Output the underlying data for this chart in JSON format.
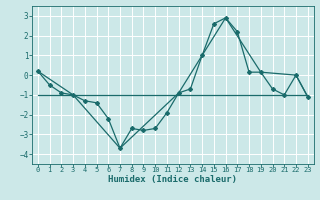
{
  "title": "",
  "xlabel": "Humidex (Indice chaleur)",
  "ylabel": "",
  "background_color": "#cce8e8",
  "line_color": "#1a6b6b",
  "grid_color": "#ffffff",
  "xlim": [
    -0.5,
    23.5
  ],
  "ylim": [
    -4.5,
    3.5
  ],
  "yticks": [
    -4,
    -3,
    -2,
    -1,
    0,
    1,
    2,
    3
  ],
  "xticks": [
    0,
    1,
    2,
    3,
    4,
    5,
    6,
    7,
    8,
    9,
    10,
    11,
    12,
    13,
    14,
    15,
    16,
    17,
    18,
    19,
    20,
    21,
    22,
    23
  ],
  "series1_x": [
    0,
    1,
    2,
    3,
    4,
    5,
    6,
    7,
    8,
    9,
    10,
    11,
    12,
    13,
    14,
    15,
    16,
    17,
    18,
    19,
    20,
    21,
    22,
    23
  ],
  "series1_y": [
    0.2,
    -0.5,
    -0.9,
    -1.0,
    -1.3,
    -1.4,
    -2.2,
    -3.7,
    -2.7,
    -2.8,
    -2.7,
    -1.9,
    -0.9,
    -0.7,
    1.0,
    2.6,
    2.9,
    2.2,
    0.15,
    0.15,
    -0.7,
    -1.0,
    0.0,
    -1.1
  ],
  "series2_x": [
    0,
    3,
    7,
    12,
    16,
    19,
    22,
    23
  ],
  "series2_y": [
    0.2,
    -1.0,
    -3.7,
    -0.9,
    2.9,
    0.15,
    0.0,
    -1.1
  ],
  "series3_x": [
    0,
    23
  ],
  "series3_y": [
    -1.0,
    -1.0
  ],
  "marker": "D",
  "marker_size": 2.0,
  "linewidth": 0.9,
  "tick_fontsize": 5.0,
  "xlabel_fontsize": 6.5
}
